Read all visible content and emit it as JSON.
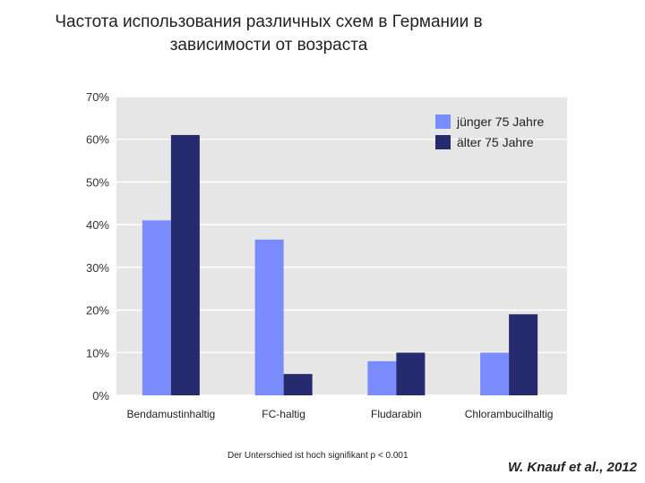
{
  "title_line1": "Частота использования различных схем в Германии в",
  "title_line2": "зависимости от возраста",
  "chart_data": {
    "type": "bar",
    "categories": [
      "Bendamustinhaltig",
      "FC-haltig",
      "Fludarabin",
      "Chlorambucilhaltig"
    ],
    "series": [
      {
        "name": "jünger 75 Jahre",
        "values": [
          41,
          36.5,
          8,
          10
        ],
        "color": "#7b8cff"
      },
      {
        "name": "älter 75 Jahre",
        "values": [
          61,
          5,
          10,
          19
        ],
        "color": "#262a6e"
      }
    ],
    "ylim": [
      0,
      70
    ],
    "yticks": [
      0,
      10,
      20,
      30,
      40,
      50,
      60,
      70
    ],
    "ytick_labels": [
      "0%",
      "10%",
      "20%",
      "30%",
      "40%",
      "50%",
      "60%",
      "70%"
    ],
    "grid": true,
    "legend_position": "top-right"
  },
  "footnote": "Der Unterschied ist hoch signifikant p < 0.001",
  "citation": "W. Knauf et al., 2012"
}
